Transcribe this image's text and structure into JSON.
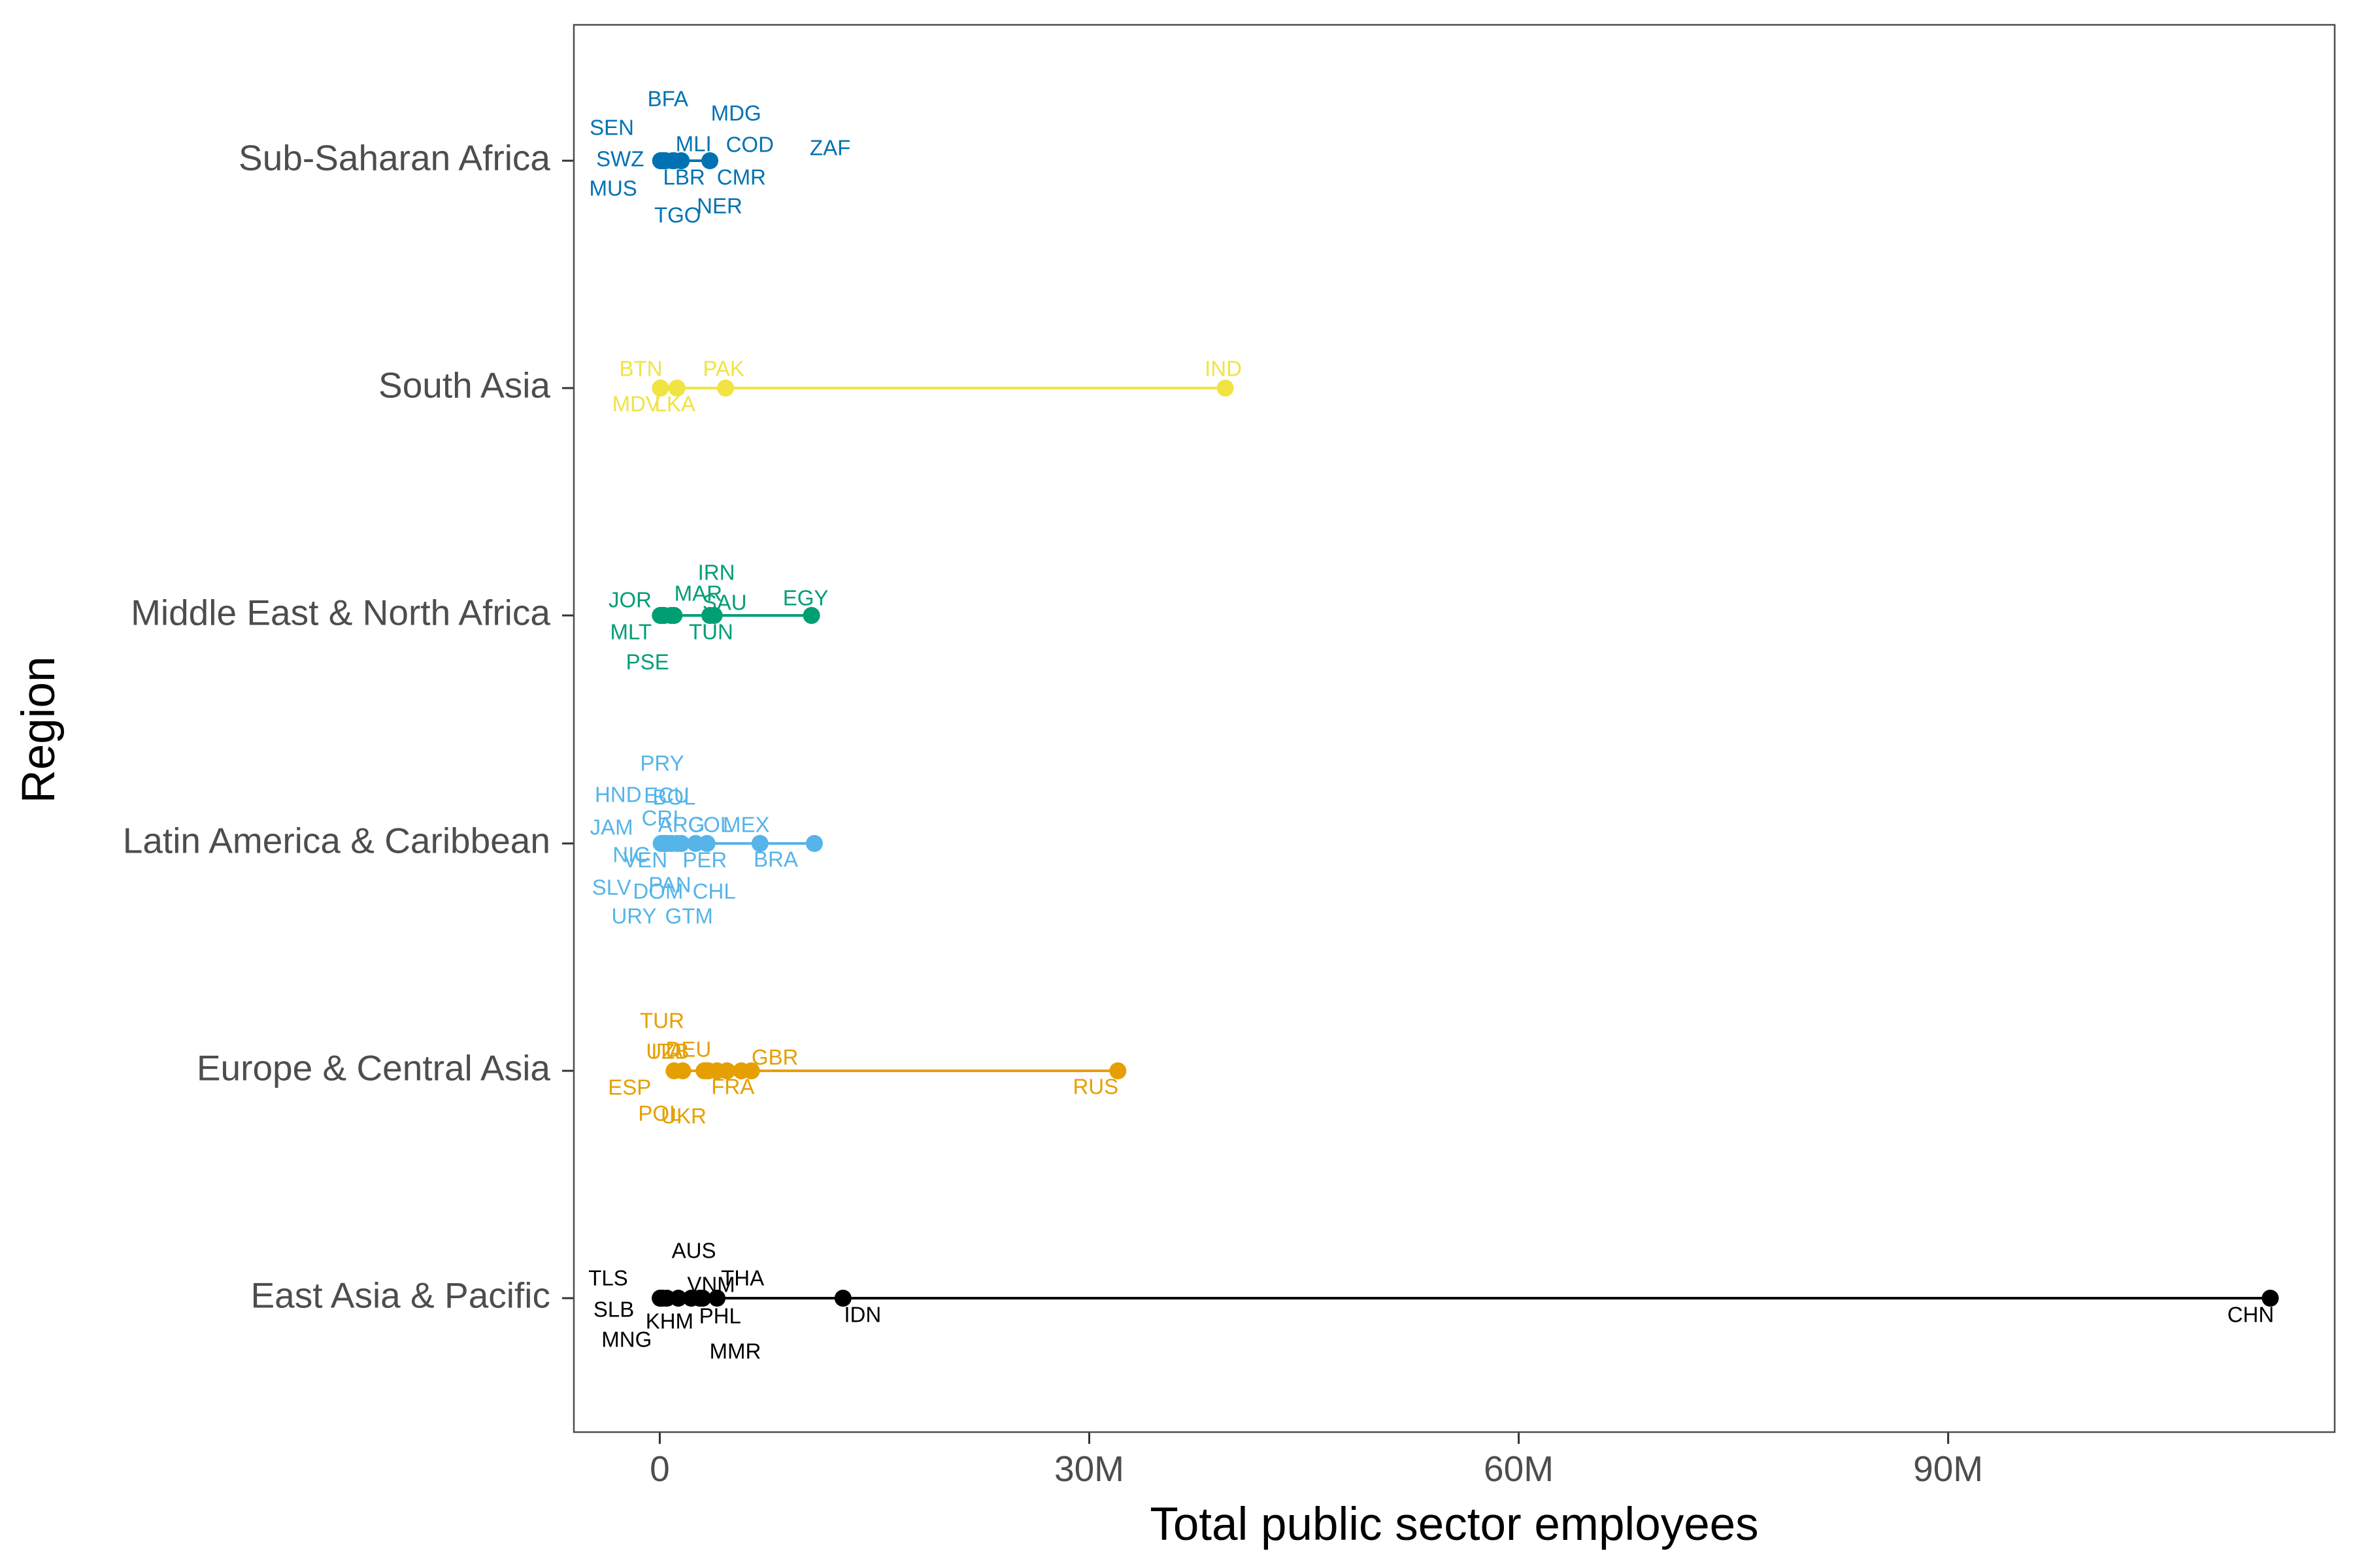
{
  "chart_data": {
    "type": "scatter",
    "title": "",
    "xlabel": "Total public sector employees",
    "ylabel": "Region",
    "xlim": [
      -6000000,
      117000000
    ],
    "x_ticks": [
      0,
      30000000,
      60000000,
      90000000
    ],
    "x_tick_labels": [
      "0",
      "30M",
      "60M",
      "90M"
    ],
    "grid": false,
    "legend": "none",
    "categories": [
      "Sub-Saharan Africa",
      "South Asia",
      "Middle East & North Africa",
      "Latin America & Caribbean",
      "Europe & Central Asia",
      "East Asia & Pacific"
    ],
    "series": [
      {
        "name": "Sub-Saharan Africa",
        "color": "#0072B2",
        "points": [
          {
            "label": "SEN",
            "x": 120000
          },
          {
            "label": "BFA",
            "x": 200000
          },
          {
            "label": "SWZ",
            "x": 60000
          },
          {
            "label": "MUS",
            "x": 80000
          },
          {
            "label": "TGO",
            "x": 150000
          },
          {
            "label": "MLI",
            "x": 400000
          },
          {
            "label": "LBR",
            "x": 100000
          },
          {
            "label": "MDG",
            "x": 900000
          },
          {
            "label": "COD",
            "x": 1500000
          },
          {
            "label": "CMR",
            "x": 1000000
          },
          {
            "label": "NER",
            "x": 300000
          },
          {
            "label": "ZAF",
            "x": 3500000
          }
        ]
      },
      {
        "name": "South Asia",
        "color": "#F0E442",
        "points": [
          {
            "label": "BTN",
            "x": 50000
          },
          {
            "label": "MDV",
            "x": 40000
          },
          {
            "label": "LKA",
            "x": 1200000
          },
          {
            "label": "PAK",
            "x": 4600000
          },
          {
            "label": "IND",
            "x": 39500000
          }
        ]
      },
      {
        "name": "Middle East & North Africa",
        "color": "#009E73",
        "points": [
          {
            "label": "JOR",
            "x": 300000
          },
          {
            "label": "MLT",
            "x": 40000
          },
          {
            "label": "PSE",
            "x": 150000
          },
          {
            "label": "MAR",
            "x": 1000000
          },
          {
            "label": "TUN",
            "x": 800000
          },
          {
            "label": "IRN",
            "x": 3500000
          },
          {
            "label": "SAU",
            "x": 3800000
          },
          {
            "label": "EGY",
            "x": 10600000
          }
        ]
      },
      {
        "name": "Latin America & Caribbean",
        "color": "#56B4E9",
        "points": [
          {
            "label": "HND",
            "x": 200000
          },
          {
            "label": "JAM",
            "x": 100000
          },
          {
            "label": "NIC",
            "x": 150000
          },
          {
            "label": "SLV",
            "x": 150000
          },
          {
            "label": "URY",
            "x": 300000
          },
          {
            "label": "PRY",
            "x": 300000
          },
          {
            "label": "CRI",
            "x": 300000
          },
          {
            "label": "PAN",
            "x": 250000
          },
          {
            "label": "BOL",
            "x": 500000
          },
          {
            "label": "GTM",
            "x": 400000
          },
          {
            "label": "ECU",
            "x": 800000
          },
          {
            "label": "COL",
            "x": 1500000
          },
          {
            "label": "PER",
            "x": 1500000
          },
          {
            "label": "CHL",
            "x": 1200000
          },
          {
            "label": "DOM",
            "x": 800000
          },
          {
            "label": "VEN",
            "x": 2500000
          },
          {
            "label": "ARG",
            "x": 3300000
          },
          {
            "label": "MEX",
            "x": 7000000
          },
          {
            "label": "BRA",
            "x": 10800000
          }
        ]
      },
      {
        "name": "Europe & Central Asia",
        "color": "#E69F00",
        "points": [
          {
            "label": "UZB",
            "x": 1000000
          },
          {
            "label": "POL",
            "x": 1600000
          },
          {
            "label": "TUR",
            "x": 3400000
          },
          {
            "label": "ITA",
            "x": 3300000
          },
          {
            "label": "ESP",
            "x": 3100000
          },
          {
            "label": "DEU",
            "x": 4700000
          },
          {
            "label": "UKR",
            "x": 4000000
          },
          {
            "label": "FRA",
            "x": 5700000
          },
          {
            "label": "GBR",
            "x": 6400000
          },
          {
            "label": "RUS",
            "x": 32000000
          }
        ]
      },
      {
        "name": "East Asia & Pacific",
        "color": "#000000",
        "points": [
          {
            "label": "TLS",
            "x": 50000
          },
          {
            "label": "SLB",
            "x": 30000
          },
          {
            "label": "MNG",
            "x": 200000
          },
          {
            "label": "KHM",
            "x": 500000
          },
          {
            "label": "AUS",
            "x": 2200000
          },
          {
            "label": "THA",
            "x": 3000000
          },
          {
            "label": "PHL",
            "x": 2800000
          },
          {
            "label": "MMR",
            "x": 1300000
          },
          {
            "label": "VNM",
            "x": 4000000
          },
          {
            "label": "IDN",
            "x": 12800000
          },
          {
            "label": "CHN",
            "x": 112500000
          }
        ]
      }
    ]
  }
}
